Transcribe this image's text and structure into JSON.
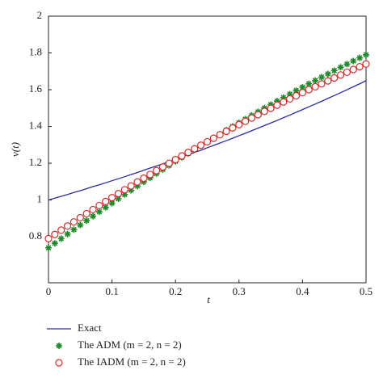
{
  "chart_data": {
    "type": "line",
    "x_label": "t",
    "y_label": "v(t)",
    "x": [
      0,
      0.01,
      0.02,
      0.03,
      0.04,
      0.05,
      0.06,
      0.07,
      0.08,
      0.09,
      0.1,
      0.11,
      0.12,
      0.13,
      0.14,
      0.15,
      0.16,
      0.17,
      0.18,
      0.19,
      0.2,
      0.21,
      0.22,
      0.23,
      0.24,
      0.25,
      0.26,
      0.27,
      0.28,
      0.29,
      0.3,
      0.31,
      0.32,
      0.33,
      0.34,
      0.35,
      0.36,
      0.37,
      0.38,
      0.39,
      0.4,
      0.41,
      0.42,
      0.43,
      0.44,
      0.45,
      0.46,
      0.47,
      0.48,
      0.49,
      0.5
    ],
    "series": [
      {
        "name": "Exact",
        "color": "#2a2aa8",
        "style": "line",
        "values": [
          1,
          1.01,
          1.02,
          1.03,
          1.041,
          1.051,
          1.062,
          1.073,
          1.083,
          1.094,
          1.105,
          1.116,
          1.127,
          1.139,
          1.15,
          1.162,
          1.174,
          1.185,
          1.197,
          1.209,
          1.221,
          1.234,
          1.246,
          1.259,
          1.271,
          1.284,
          1.297,
          1.31,
          1.323,
          1.336,
          1.35,
          1.363,
          1.377,
          1.391,
          1.405,
          1.419,
          1.433,
          1.448,
          1.462,
          1.477,
          1.492,
          1.507,
          1.522,
          1.537,
          1.553,
          1.568,
          1.584,
          1.6,
          1.616,
          1.632,
          1.649
        ]
      },
      {
        "name": "The ADM (m = 2, n = 2)",
        "color": "#1f8a2a",
        "style": "star",
        "values": [
          0.74,
          0.765,
          0.79,
          0.815,
          0.839,
          0.864,
          0.888,
          0.912,
          0.936,
          0.96,
          0.983,
          1.007,
          1.03,
          1.053,
          1.076,
          1.099,
          1.121,
          1.144,
          1.166,
          1.188,
          1.21,
          1.232,
          1.253,
          1.275,
          1.296,
          1.317,
          1.338,
          1.359,
          1.38,
          1.4,
          1.42,
          1.44,
          1.46,
          1.48,
          1.5,
          1.519,
          1.538,
          1.557,
          1.576,
          1.595,
          1.614,
          1.632,
          1.65,
          1.668,
          1.686,
          1.704,
          1.722,
          1.739,
          1.756,
          1.773,
          1.79
        ]
      },
      {
        "name": "The IADM (m = 2, n = 2)",
        "color": "#d62a2a",
        "style": "circle",
        "values": [
          0.79,
          0.813,
          0.836,
          0.859,
          0.881,
          0.904,
          0.926,
          0.948,
          0.97,
          0.992,
          1.013,
          1.035,
          1.056,
          1.077,
          1.098,
          1.119,
          1.139,
          1.16,
          1.18,
          1.2,
          1.22,
          1.24,
          1.259,
          1.279,
          1.298,
          1.317,
          1.336,
          1.355,
          1.374,
          1.392,
          1.41,
          1.428,
          1.446,
          1.464,
          1.482,
          1.499,
          1.516,
          1.533,
          1.55,
          1.567,
          1.584,
          1.6,
          1.616,
          1.632,
          1.648,
          1.664,
          1.68,
          1.695,
          1.71,
          1.725,
          1.74
        ]
      }
    ],
    "xlim": [
      0,
      0.5
    ],
    "xticks": [
      0,
      0.1,
      0.2,
      0.3,
      0.4,
      0.5
    ],
    "ylim": [
      0.55,
      2
    ],
    "yticks": [
      0.8,
      1,
      1.2,
      1.4,
      1.6,
      1.8,
      2
    ],
    "legend": "bottom-left",
    "grid": false
  }
}
